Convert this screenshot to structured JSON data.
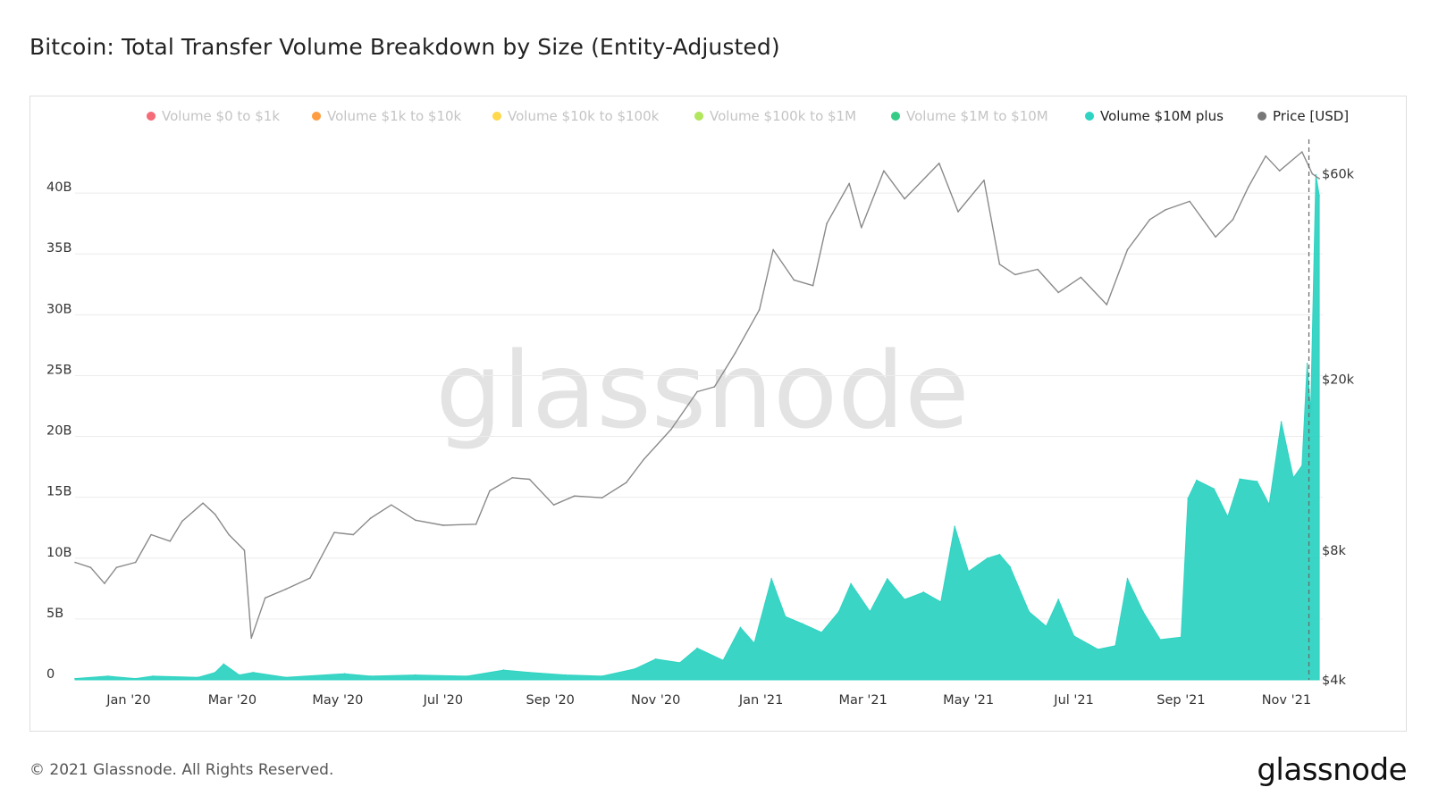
{
  "title": "Bitcoin: Total Transfer Volume Breakdown by Size (Entity-Adjusted)",
  "footer": {
    "copyright": "© 2021 Glassnode. All Rights Reserved.",
    "logo": "glassnode"
  },
  "watermark": "glassnode",
  "colors": {
    "volume_10m_plus": "#2fd3c2",
    "price": "#8a8a8a",
    "grid": "#ececec"
  },
  "chart_data": {
    "type": "area",
    "title": "Bitcoin: Total Transfer Volume Breakdown by Size (Entity-Adjusted)",
    "legend_position": "top",
    "grid": true,
    "legend": [
      {
        "label": "Volume $0 to $1k",
        "color": "#f45b69",
        "active": false
      },
      {
        "label": "Volume $1k to $10k",
        "color": "#ff922b",
        "active": false
      },
      {
        "label": "Volume $10k to $100k",
        "color": "#ffd43b",
        "active": false
      },
      {
        "label": "Volume $100k to $1M",
        "color": "#a9e34b",
        "active": false
      },
      {
        "label": "Volume $1M to $10M",
        "color": "#20c77a",
        "active": false
      },
      {
        "label": "Volume $10M plus",
        "color": "#2fd3c2",
        "active": true
      },
      {
        "label": "Price [USD]",
        "color": "#777777",
        "active": true
      }
    ],
    "x_axis": {
      "range": [
        "2019-12-01",
        "2021-11-22"
      ],
      "ticks": [
        {
          "label": "Jan '20",
          "date": "2020-01-01"
        },
        {
          "label": "Mar '20",
          "date": "2020-03-01"
        },
        {
          "label": "May '20",
          "date": "2020-05-01"
        },
        {
          "label": "Jul '20",
          "date": "2020-07-01"
        },
        {
          "label": "Sep '20",
          "date": "2020-09-01"
        },
        {
          "label": "Nov '20",
          "date": "2020-11-01"
        },
        {
          "label": "Jan '21",
          "date": "2021-01-01"
        },
        {
          "label": "Mar '21",
          "date": "2021-03-01"
        },
        {
          "label": "May '21",
          "date": "2021-05-01"
        },
        {
          "label": "Jul '21",
          "date": "2021-07-01"
        },
        {
          "label": "Sep '21",
          "date": "2021-09-01"
        },
        {
          "label": "Nov '21",
          "date": "2021-11-01"
        }
      ]
    },
    "y_left": {
      "range": [
        0,
        45000000000
      ],
      "ticks": [
        {
          "label": "0",
          "value": 0
        },
        {
          "label": "5B",
          "value": 5000000000
        },
        {
          "label": "10B",
          "value": 10000000000
        },
        {
          "label": "15B",
          "value": 15000000000
        },
        {
          "label": "20B",
          "value": 20000000000
        },
        {
          "label": "25B",
          "value": 25000000000
        },
        {
          "label": "30B",
          "value": 30000000000
        },
        {
          "label": "35B",
          "value": 35000000000
        },
        {
          "label": "40B",
          "value": 40000000000
        }
      ]
    },
    "y_right": {
      "scale": "log",
      "range": [
        4000,
        75000
      ],
      "ticks": [
        {
          "label": "$4k",
          "value": 4000
        },
        {
          "label": "$8k",
          "value": 8000
        },
        {
          "label": "$20k",
          "value": 20000
        },
        {
          "label": "$60k",
          "value": 60000
        }
      ]
    },
    "annotation_line_date": "2021-11-14",
    "series": [
      {
        "name": "Volume $10M plus",
        "axis": "left",
        "points": [
          [
            "2019-12-01",
            100000000.0
          ],
          [
            "2019-12-20",
            300000000.0
          ],
          [
            "2020-01-05",
            100000000.0
          ],
          [
            "2020-01-15",
            300000000.0
          ],
          [
            "2020-02-10",
            200000000.0
          ],
          [
            "2020-02-20",
            600000000.0
          ],
          [
            "2020-02-25",
            1300000000.0
          ],
          [
            "2020-03-05",
            400000000.0
          ],
          [
            "2020-03-13",
            600000000.0
          ],
          [
            "2020-04-01",
            200000000.0
          ],
          [
            "2020-05-05",
            500000000.0
          ],
          [
            "2020-05-20",
            300000000.0
          ],
          [
            "2020-06-15",
            400000000.0
          ],
          [
            "2020-07-15",
            300000000.0
          ],
          [
            "2020-08-05",
            800000000.0
          ],
          [
            "2020-08-20",
            600000000.0
          ],
          [
            "2020-09-10",
            400000000.0
          ],
          [
            "2020-10-01",
            300000000.0
          ],
          [
            "2020-10-20",
            900000000.0
          ],
          [
            "2020-11-01",
            1700000000.0
          ],
          [
            "2020-11-15",
            1400000000.0
          ],
          [
            "2020-11-25",
            2600000000.0
          ],
          [
            "2020-12-10",
            1600000000.0
          ],
          [
            "2020-12-20",
            4300000000.0
          ],
          [
            "2020-12-28",
            3000000000.0
          ],
          [
            "2021-01-07",
            8300000000.0
          ],
          [
            "2021-01-15",
            5200000000.0
          ],
          [
            "2021-01-25",
            4600000000.0
          ],
          [
            "2021-02-05",
            3900000000.0
          ],
          [
            "2021-02-15",
            5600000000.0
          ],
          [
            "2021-02-22",
            7900000000.0
          ],
          [
            "2021-03-05",
            5600000000.0
          ],
          [
            "2021-03-15",
            8300000000.0
          ],
          [
            "2021-03-25",
            6600000000.0
          ],
          [
            "2021-04-05",
            7200000000.0
          ],
          [
            "2021-04-15",
            6400000000.0
          ],
          [
            "2021-04-23",
            12600000000.0
          ],
          [
            "2021-05-01",
            8900000000.0
          ],
          [
            "2021-05-12",
            10000000000.0
          ],
          [
            "2021-05-19",
            10300000000.0
          ],
          [
            "2021-05-25",
            9300000000.0
          ],
          [
            "2021-06-05",
            5600000000.0
          ],
          [
            "2021-06-15",
            4400000000.0
          ],
          [
            "2021-06-22",
            6600000000.0
          ],
          [
            "2021-07-01",
            3600000000.0
          ],
          [
            "2021-07-15",
            2500000000.0
          ],
          [
            "2021-07-25",
            2800000000.0
          ],
          [
            "2021-08-01",
            8300000000.0
          ],
          [
            "2021-08-10",
            5600000000.0
          ],
          [
            "2021-08-20",
            3300000000.0
          ],
          [
            "2021-09-01",
            3500000000.0
          ],
          [
            "2021-09-05",
            14900000000.0
          ],
          [
            "2021-09-10",
            16400000000.0
          ],
          [
            "2021-09-20",
            15700000000.0
          ],
          [
            "2021-09-28",
            13400000000.0
          ],
          [
            "2021-10-05",
            16500000000.0
          ],
          [
            "2021-10-15",
            16300000000.0
          ],
          [
            "2021-10-22",
            14400000000.0
          ],
          [
            "2021-10-29",
            21200000000.0
          ],
          [
            "2021-11-05",
            16600000000.0
          ],
          [
            "2021-11-10",
            17600000000.0
          ],
          [
            "2021-11-13",
            26000000000.0
          ],
          [
            "2021-11-15",
            22000000000.0
          ],
          [
            "2021-11-18",
            41500000000.0
          ],
          [
            "2021-11-20",
            39800000000.0
          ]
        ]
      },
      {
        "name": "Price [USD]",
        "axis": "right",
        "points": [
          [
            "2019-12-01",
            7500
          ],
          [
            "2019-12-10",
            7300
          ],
          [
            "2019-12-18",
            6700
          ],
          [
            "2019-12-25",
            7300
          ],
          [
            "2020-01-05",
            7500
          ],
          [
            "2020-01-14",
            8700
          ],
          [
            "2020-01-25",
            8400
          ],
          [
            "2020-02-01",
            9350
          ],
          [
            "2020-02-13",
            10300
          ],
          [
            "2020-02-20",
            9700
          ],
          [
            "2020-02-28",
            8700
          ],
          [
            "2020-03-08",
            8000
          ],
          [
            "2020-03-12",
            5000
          ],
          [
            "2020-03-20",
            6200
          ],
          [
            "2020-04-01",
            6500
          ],
          [
            "2020-04-15",
            6900
          ],
          [
            "2020-04-29",
            8800
          ],
          [
            "2020-05-10",
            8700
          ],
          [
            "2020-05-20",
            9500
          ],
          [
            "2020-06-01",
            10200
          ],
          [
            "2020-06-15",
            9400
          ],
          [
            "2020-07-01",
            9150
          ],
          [
            "2020-07-20",
            9200
          ],
          [
            "2020-07-28",
            11000
          ],
          [
            "2020-08-10",
            11800
          ],
          [
            "2020-08-20",
            11700
          ],
          [
            "2020-09-03",
            10200
          ],
          [
            "2020-09-15",
            10700
          ],
          [
            "2020-10-01",
            10600
          ],
          [
            "2020-10-15",
            11500
          ],
          [
            "2020-10-25",
            13000
          ],
          [
            "2020-11-10",
            15300
          ],
          [
            "2020-11-25",
            18700
          ],
          [
            "2020-12-05",
            19200
          ],
          [
            "2020-12-17",
            23000
          ],
          [
            "2020-12-31",
            29000
          ],
          [
            "2021-01-08",
            40000
          ],
          [
            "2021-01-20",
            34000
          ],
          [
            "2021-01-31",
            33000
          ],
          [
            "2021-02-08",
            46000
          ],
          [
            "2021-02-21",
            57000
          ],
          [
            "2021-02-28",
            45000
          ],
          [
            "2021-03-13",
            61000
          ],
          [
            "2021-03-25",
            52500
          ],
          [
            "2021-04-14",
            63500
          ],
          [
            "2021-04-25",
            49000
          ],
          [
            "2021-05-10",
            58000
          ],
          [
            "2021-05-19",
            37000
          ],
          [
            "2021-05-28",
            35000
          ],
          [
            "2021-06-10",
            36000
          ],
          [
            "2021-06-22",
            31800
          ],
          [
            "2021-07-05",
            34500
          ],
          [
            "2021-07-20",
            29800
          ],
          [
            "2021-08-01",
            40000
          ],
          [
            "2021-08-14",
            47000
          ],
          [
            "2021-08-23",
            49500
          ],
          [
            "2021-09-06",
            51800
          ],
          [
            "2021-09-21",
            42800
          ],
          [
            "2021-10-01",
            47000
          ],
          [
            "2021-10-10",
            56000
          ],
          [
            "2021-10-20",
            66000
          ],
          [
            "2021-10-28",
            61000
          ],
          [
            "2021-11-10",
            67500
          ],
          [
            "2021-11-16",
            60000
          ],
          [
            "2021-11-20",
            58500
          ]
        ]
      }
    ]
  }
}
